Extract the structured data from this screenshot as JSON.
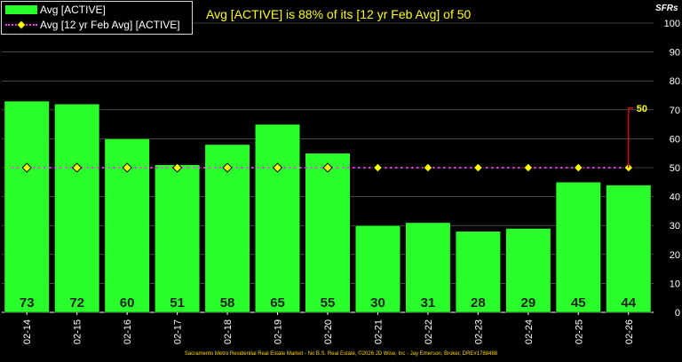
{
  "title": "Avg [ACTIVE] is 88% of its [12 yr Feb Avg] of 50",
  "unit_label": "SFRs",
  "legend": {
    "series_bar": "Avg [ACTIVE]",
    "series_line": "Avg [12 yr Feb Avg] [ACTIVE]"
  },
  "footer": "Sacramento Metro Residential Real Estate Market - No B.S. Real Estate, ©2026 JD Wise, Inc - Jay Emerson, Broker, DRE#1788488",
  "colors": {
    "bar": "#2bff2b",
    "avg_line": "#ff33ff",
    "marker": "#ffff00",
    "annotation": "#cc0000",
    "title": "#ffff00",
    "grid": "#ffffff",
    "background": "#000000"
  },
  "chart_data": {
    "type": "bar",
    "categories": [
      "02-14",
      "02-15",
      "02-16",
      "02-17",
      "02-18",
      "02-19",
      "02-20",
      "02-21",
      "02-22",
      "02-23",
      "02-24",
      "02-25",
      "02-26"
    ],
    "series": [
      {
        "name": "Avg [ACTIVE]",
        "type": "bar",
        "values": [
          73,
          72,
          60,
          51,
          58,
          65,
          55,
          30,
          31,
          28,
          29,
          45,
          44
        ]
      },
      {
        "name": "Avg [12 yr Feb Avg] [ACTIVE]",
        "type": "line",
        "values": [
          50,
          50,
          50,
          50,
          50,
          50,
          50,
          50,
          50,
          50,
          50,
          50,
          50
        ]
      }
    ],
    "data_labels": [
      "73",
      "72",
      "60",
      "51",
      "58",
      "65",
      "55",
      "30",
      "31",
      "28",
      "29",
      "45",
      "44"
    ],
    "annotation": {
      "label": "50",
      "value": 50
    },
    "ylim": [
      0,
      100
    ],
    "yticks": [
      0,
      10,
      20,
      30,
      40,
      50,
      60,
      70,
      80,
      90,
      100
    ],
    "y_axis_side": "right",
    "grid": true,
    "legend_position": "top-left"
  }
}
